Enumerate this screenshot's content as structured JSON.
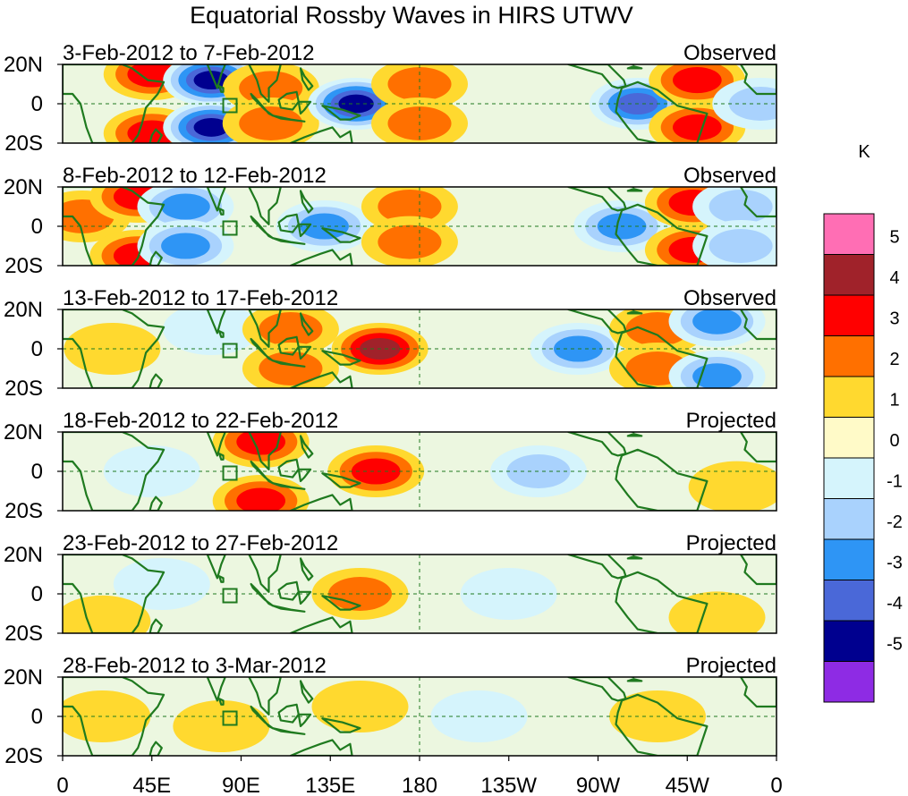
{
  "chart_data": {
    "type": "heatmap",
    "title": "Equatorial Rossby Waves in HIRS UTWV",
    "x_ticks": [
      "0",
      "45E",
      "90E",
      "135E",
      "180",
      "135W",
      "90W",
      "45W",
      "0"
    ],
    "lat_ticks": [
      "20N",
      "0",
      "20S"
    ],
    "xlim_deg_east": [
      0,
      360
    ],
    "ylim_deg": [
      -20,
      20
    ],
    "colorbar": {
      "unit": "K",
      "levels": [
        5,
        4,
        3,
        2,
        1,
        0,
        -1,
        -2,
        -3,
        -4,
        -5
      ],
      "colors": [
        "#ff6eb4",
        "#a0222a",
        "#ff0000",
        "#ff7000",
        "#ffd92f",
        "#fffac8",
        "#d5f4fc",
        "#a9d2fd",
        "#2e95f5",
        "#4a68d8",
        "#00008f",
        "#8e2be4"
      ]
    },
    "panels": [
      {
        "date_range": "3-Feb-2012 to 7-Feb-2012",
        "type": "Observed",
        "anomalies": [
          {
            "lon": 45,
            "lat": 15,
            "v": 3
          },
          {
            "lon": 45,
            "lat": -15,
            "v": 3
          },
          {
            "lon": 75,
            "lat": 12,
            "v": -5
          },
          {
            "lon": 75,
            "lat": -12,
            "v": -5
          },
          {
            "lon": 105,
            "lat": 8,
            "v": 2
          },
          {
            "lon": 105,
            "lat": -10,
            "v": 2
          },
          {
            "lon": 148,
            "lat": 0,
            "v": -5
          },
          {
            "lon": 180,
            "lat": 10,
            "v": 2
          },
          {
            "lon": 180,
            "lat": -10,
            "v": 2
          },
          {
            "lon": 290,
            "lat": 0,
            "v": -4
          },
          {
            "lon": 320,
            "lat": 12,
            "v": 3
          },
          {
            "lon": 320,
            "lat": -12,
            "v": 3
          },
          {
            "lon": 352,
            "lat": 0,
            "v": -2
          }
        ]
      },
      {
        "date_range": "8-Feb-2012 to 12-Feb-2012",
        "type": "Observed",
        "anomalies": [
          {
            "lon": 10,
            "lat": 5,
            "v": 2
          },
          {
            "lon": 38,
            "lat": 15,
            "v": 3
          },
          {
            "lon": 38,
            "lat": -15,
            "v": 3
          },
          {
            "lon": 62,
            "lat": 10,
            "v": -3
          },
          {
            "lon": 62,
            "lat": -10,
            "v": -3
          },
          {
            "lon": 132,
            "lat": 0,
            "v": -3
          },
          {
            "lon": 175,
            "lat": 10,
            "v": 2
          },
          {
            "lon": 175,
            "lat": -8,
            "v": 2
          },
          {
            "lon": 282,
            "lat": 0,
            "v": -3
          },
          {
            "lon": 318,
            "lat": 12,
            "v": 3
          },
          {
            "lon": 318,
            "lat": -12,
            "v": 3
          },
          {
            "lon": 342,
            "lat": 10,
            "v": -2
          },
          {
            "lon": 342,
            "lat": -10,
            "v": -2
          }
        ]
      },
      {
        "date_range": "13-Feb-2012 to 17-Feb-2012",
        "type": "Observed",
        "anomalies": [
          {
            "lon": 25,
            "lat": 0,
            "v": 1
          },
          {
            "lon": 75,
            "lat": 10,
            "v": -1
          },
          {
            "lon": 115,
            "lat": 10,
            "v": 2
          },
          {
            "lon": 115,
            "lat": -10,
            "v": 2
          },
          {
            "lon": 160,
            "lat": 0,
            "v": 4
          },
          {
            "lon": 260,
            "lat": 0,
            "v": -3
          },
          {
            "lon": 300,
            "lat": 10,
            "v": 2
          },
          {
            "lon": 300,
            "lat": -10,
            "v": 2
          },
          {
            "lon": 330,
            "lat": 14,
            "v": -3
          },
          {
            "lon": 330,
            "lat": -14,
            "v": -3
          }
        ]
      },
      {
        "date_range": "18-Feb-2012 to 22-Feb-2012",
        "type": "Projected",
        "anomalies": [
          {
            "lon": 45,
            "lat": 0,
            "v": -1
          },
          {
            "lon": 100,
            "lat": 15,
            "v": 3
          },
          {
            "lon": 100,
            "lat": -15,
            "v": 3
          },
          {
            "lon": 158,
            "lat": 0,
            "v": 3
          },
          {
            "lon": 240,
            "lat": 0,
            "v": -2
          },
          {
            "lon": 340,
            "lat": -8,
            "v": 1
          }
        ]
      },
      {
        "date_range": "23-Feb-2012 to 27-Feb-2012",
        "type": "Projected",
        "anomalies": [
          {
            "lon": 50,
            "lat": 5,
            "v": -1
          },
          {
            "lon": 150,
            "lat": 0,
            "v": 2
          },
          {
            "lon": 225,
            "lat": 0,
            "v": -1
          },
          {
            "lon": 330,
            "lat": -12,
            "v": 1
          },
          {
            "lon": 20,
            "lat": -14,
            "v": 1
          }
        ]
      },
      {
        "date_range": "28-Feb-2012 to 3-Mar-2012",
        "type": "Projected",
        "anomalies": [
          {
            "lon": 20,
            "lat": 0,
            "v": 1
          },
          {
            "lon": 80,
            "lat": -5,
            "v": 1
          },
          {
            "lon": 150,
            "lat": 5,
            "v": 1
          },
          {
            "lon": 210,
            "lat": 0,
            "v": -1
          },
          {
            "lon": 300,
            "lat": 0,
            "v": 1
          }
        ]
      }
    ]
  }
}
